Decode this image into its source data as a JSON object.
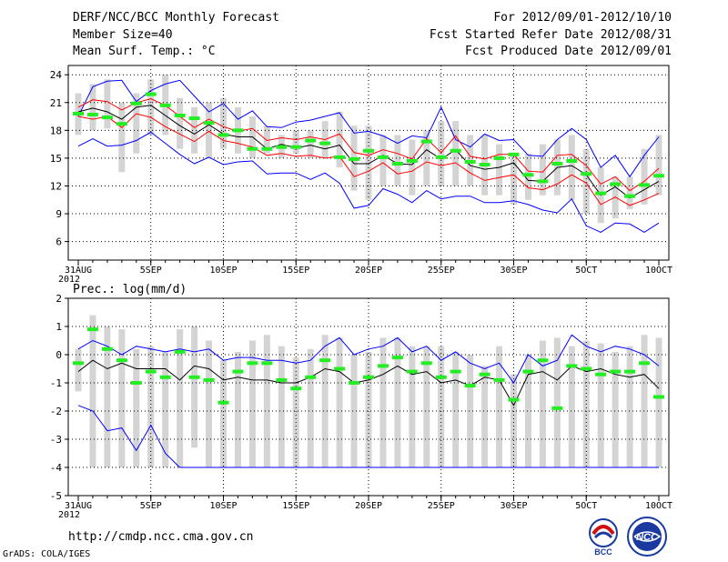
{
  "header": {
    "title": "DERF/NCC/BCC Monthly Forecast",
    "member_size": "Member Size=40",
    "variable": "Mean Surf. Temp.: °C",
    "period": "For 2012/09/01-2012/10/10",
    "started": "Fcst Started Refer Date 2012/08/31",
    "produced": "Fcst Produced Date 2012/09/01"
  },
  "footer": {
    "url": "http://cmdp.ncc.cma.gov.cn",
    "grads": "GrADS: COLA/IGES",
    "logo_bcc": "BCC",
    "logo_ncc": "NCC"
  },
  "colors": {
    "max_line": "#0000ff",
    "min_line": "#0000ff",
    "spread_line": "#ff0000",
    "mean_line": "#000000",
    "obs_marker": "#22ee22",
    "bar": "#d4d4d4",
    "grid": "#000000"
  },
  "chart_data": [
    {
      "type": "line",
      "title": "Mean Surf. Temp.: °C",
      "x_label_year": "2012",
      "x": [
        0,
        1,
        2,
        3,
        4,
        5,
        6,
        7,
        8,
        9,
        10,
        11,
        12,
        13,
        14,
        15,
        16,
        17,
        18,
        19,
        20,
        21,
        22,
        23,
        24,
        25,
        26,
        27,
        28,
        29,
        30,
        31,
        32,
        33,
        34,
        35,
        36,
        37,
        38,
        39,
        40
      ],
      "xticks": [
        {
          "x": 0,
          "label": "31AUG"
        },
        {
          "x": 5,
          "label": "5SEP"
        },
        {
          "x": 10,
          "label": "10SEP"
        },
        {
          "x": 15,
          "label": "15SEP"
        },
        {
          "x": 20,
          "label": "20SEP"
        },
        {
          "x": 25,
          "label": "25SEP"
        },
        {
          "x": 30,
          "label": "30SEP"
        },
        {
          "x": 35,
          "label": "5OCT"
        },
        {
          "x": 40,
          "label": "10OCT"
        }
      ],
      "ylim": [
        4,
        25
      ],
      "yticks": [
        6,
        9,
        12,
        15,
        18,
        21,
        24
      ],
      "bars_low": [
        17.5,
        18,
        18.2,
        13.5,
        15.5,
        17.5,
        17.5,
        16,
        15.5,
        15,
        16,
        15.5,
        15,
        15.5,
        15,
        15.5,
        15,
        15,
        14,
        11.5,
        10.5,
        12,
        12,
        11,
        12,
        12,
        12,
        12,
        11,
        11,
        10,
        10.5,
        11,
        11,
        10.5,
        9,
        8,
        8.5,
        9.5,
        10,
        11
      ],
      "bars_high": [
        22,
        23,
        23.5,
        21,
        22,
        23.5,
        24,
        21.5,
        20.5,
        21,
        21.5,
        20.5,
        19.5,
        18.5,
        17.5,
        18,
        18,
        19,
        20,
        18.5,
        18.5,
        17.5,
        17.5,
        17,
        18,
        19,
        19,
        17.5,
        17.5,
        16.5,
        15.5,
        15.5,
        16.5,
        17,
        17.5,
        16,
        14,
        13,
        13,
        16,
        17.5
      ],
      "series": [
        {
          "name": "max",
          "values": [
            16.3,
            17.1,
            16.3,
            16.4,
            16.9,
            17.8,
            16.6,
            15.4,
            14.4,
            15.1,
            14.3,
            14.6,
            14.7,
            13.3,
            13.4,
            13.4,
            12.7,
            13.4,
            12.3,
            9.6,
            9.9,
            11.7,
            11.1,
            10.2,
            11.5,
            10.6,
            10.9,
            10.9,
            10.2,
            10.2,
            10.4,
            10,
            9.4,
            9.1,
            10.6,
            7.7,
            7.0,
            8.0,
            7.9,
            7.0,
            8.0
          ]
        },
        {
          "name": "min",
          "values": [
            19.5,
            22.7,
            23.3,
            23.4,
            21.1,
            22.3,
            23.0,
            23.4,
            21.7,
            20.0,
            20.9,
            19.2,
            20.1,
            18.4,
            18.3,
            18.9,
            19.1,
            19.5,
            19.9,
            17.7,
            17.9,
            17.4,
            16.6,
            17.4,
            17.2,
            20.5,
            17.0,
            16.2,
            17.6,
            16.9,
            17.0,
            15.3,
            15.2,
            17.0,
            18.2,
            17.0,
            14.0,
            15.3,
            13.0,
            15.3,
            17.3
          ]
        },
        {
          "name": "spread_upper",
          "values": [
            20.5,
            21.3,
            21.1,
            20.2,
            21.0,
            21.4,
            20.7,
            19.5,
            18.3,
            19.2,
            18.4,
            17.9,
            18.2,
            16.9,
            17.2,
            17.0,
            17.3,
            17.0,
            17.6,
            15.6,
            15.3,
            15.9,
            15.5,
            14.9,
            17.1,
            15.6,
            17.4,
            15.2,
            14.9,
            15.4,
            15.4,
            13.6,
            13.5,
            15.3,
            15.4,
            14.2,
            12.2,
            13.0,
            11.5,
            12.5,
            13.9
          ]
        },
        {
          "name": "spread_lower",
          "values": [
            19.5,
            19.2,
            19.5,
            18.3,
            19.8,
            19.4,
            18.4,
            17.6,
            16.8,
            17.9,
            16.9,
            16.6,
            16.2,
            15.3,
            15.5,
            15.2,
            15.3,
            15.0,
            15.2,
            13.0,
            13.6,
            14.5,
            13.3,
            13.6,
            14.6,
            14.2,
            14.5,
            13.4,
            12.6,
            12.9,
            13.2,
            11.8,
            11.6,
            12.2,
            13.2,
            12.3,
            10.0,
            10.8,
            9.9,
            10.5,
            11.2
          ]
        },
        {
          "name": "ensemble_mean",
          "values": [
            20.0,
            20.4,
            20.0,
            19.2,
            20.5,
            20.7,
            19.6,
            18.5,
            17.6,
            18.6,
            17.6,
            17.3,
            17.3,
            16.0,
            16.5,
            16.1,
            16.4,
            16.0,
            16.4,
            14.4,
            14.4,
            15.3,
            14.4,
            14.3,
            15.9,
            14.9,
            15.9,
            14.2,
            13.8,
            14.0,
            14.5,
            12.6,
            12.5,
            14.0,
            14.2,
            13.2,
            11.0,
            11.9,
            10.7,
            11.6,
            12.5
          ]
        },
        {
          "name": "observed",
          "values": [
            19.8,
            19.7,
            19.4,
            18.7,
            20.9,
            21.9,
            20.7,
            19.6,
            19.3,
            18.8,
            17.5,
            18.0,
            16.0,
            16.0,
            16.2,
            16.2,
            16.9,
            16.6,
            15.1,
            14.9,
            15.8,
            15.1,
            14.4,
            14.7,
            16.8,
            15.1,
            15.8,
            14.6,
            14.3,
            15.0,
            15.4,
            13.2,
            12.5,
            14.4,
            14.7,
            13.3,
            11.2,
            12.2,
            10.9,
            12.1,
            13.1
          ]
        }
      ]
    },
    {
      "type": "line",
      "title": "Prec.: log(mm/d)",
      "x_label_year": "2012",
      "x": [
        0,
        1,
        2,
        3,
        4,
        5,
        6,
        7,
        8,
        9,
        10,
        11,
        12,
        13,
        14,
        15,
        16,
        17,
        18,
        19,
        20,
        21,
        22,
        23,
        24,
        25,
        26,
        27,
        28,
        29,
        30,
        31,
        32,
        33,
        34,
        35,
        36,
        37,
        38,
        39,
        40
      ],
      "xticks": [
        {
          "x": 0,
          "label": "31AUG"
        },
        {
          "x": 5,
          "label": "5SEP"
        },
        {
          "x": 10,
          "label": "10SEP"
        },
        {
          "x": 15,
          "label": "15SEP"
        },
        {
          "x": 20,
          "label": "20SEP"
        },
        {
          "x": 25,
          "label": "25SEP"
        },
        {
          "x": 30,
          "label": "30SEP"
        },
        {
          "x": 35,
          "label": "5OCT"
        },
        {
          "x": 40,
          "label": "10OCT"
        }
      ],
      "ylim": [
        -5,
        2
      ],
      "yticks": [
        -5,
        -4,
        -3,
        -2,
        -1,
        0,
        1,
        2
      ],
      "bars_low": [
        -1.3,
        -4,
        -4,
        -4,
        -4,
        -4,
        -4,
        -4,
        -3.3,
        -4,
        -4,
        -4,
        -4,
        -4,
        -4,
        -4,
        -4,
        -4,
        -4,
        -4,
        -4,
        -4,
        -4,
        -4,
        -4,
        -4,
        -4,
        -4,
        -4,
        -4,
        -4,
        -4,
        -4,
        -4,
        -4,
        -4,
        -4,
        -4,
        -4,
        -4,
        -4
      ],
      "bars_high": [
        0.2,
        1.4,
        1.0,
        0.9,
        0.2,
        0.3,
        0.1,
        0.9,
        1.0,
        0.5,
        -0.2,
        0.1,
        0.5,
        0.7,
        0.3,
        -0.1,
        0.2,
        0.7,
        0.6,
        0.0,
        0.1,
        0.6,
        0.6,
        0.3,
        0.3,
        0.3,
        0.1,
        0.0,
        -0.4,
        0.3,
        -0.7,
        0.0,
        0.5,
        0.6,
        0.3,
        0.5,
        0.4,
        0.1,
        0.3,
        0.7,
        0.6
      ],
      "series": [
        {
          "name": "max",
          "values": [
            0.2,
            0.5,
            0.3,
            0.0,
            0.3,
            0.2,
            0.1,
            0.2,
            0.1,
            0.2,
            -0.2,
            -0.1,
            -0.1,
            -0.2,
            -0.2,
            -0.3,
            -0.2,
            0.3,
            0.6,
            0.0,
            0.2,
            0.3,
            0.6,
            0.1,
            0.3,
            -0.2,
            0.1,
            -0.3,
            -0.5,
            -0.3,
            -1.0,
            0.0,
            -0.4,
            -0.2,
            0.7,
            0.3,
            0.1,
            0.3,
            0.2,
            0.0,
            -0.4
          ]
        },
        {
          "name": "mean",
          "values": [
            -0.6,
            -0.2,
            -0.5,
            -0.3,
            -0.5,
            -0.5,
            -0.5,
            -0.9,
            -0.4,
            -0.5,
            -0.9,
            -0.8,
            -0.9,
            -0.9,
            -1.0,
            -1.0,
            -0.8,
            -0.5,
            -0.6,
            -1.0,
            -0.9,
            -0.7,
            -0.4,
            -0.7,
            -0.6,
            -1.0,
            -0.9,
            -1.1,
            -0.8,
            -0.9,
            -1.8,
            -0.7,
            -0.6,
            -0.9,
            -0.4,
            -0.6,
            -0.5,
            -0.7,
            -0.8,
            -0.7,
            -1.2
          ]
        },
        {
          "name": "min",
          "values": [
            -1.8,
            -2.0,
            -2.7,
            -2.6,
            -3.4,
            -2.5,
            -3.5,
            -4.0,
            -4.0,
            -4.0,
            -4.0,
            -4.0,
            -4.0,
            -4.0,
            -4.0,
            -4.0,
            -4.0,
            -4.0,
            -4.0,
            -4.0,
            -4.0,
            -4.0,
            -4.0,
            -4.0,
            -4.0,
            -4.0,
            -4.0,
            -4.0,
            -4.0,
            -4.0,
            -4.0,
            -4.0,
            -4.0,
            -4.0,
            -4.0,
            -4.0,
            -4.0,
            -4.0,
            -4.0,
            -4.0,
            -4.0
          ]
        },
        {
          "name": "observed",
          "values": [
            -0.3,
            0.9,
            0.2,
            -0.2,
            -1.0,
            -0.6,
            -0.8,
            0.1,
            -0.8,
            -0.9,
            -1.7,
            -0.6,
            -0.3,
            -0.3,
            -0.9,
            -1.2,
            -0.8,
            -0.2,
            -0.5,
            -1.0,
            -0.8,
            -0.4,
            -0.1,
            -0.6,
            -0.3,
            -0.8,
            -0.6,
            -1.1,
            -0.7,
            -0.9,
            -1.6,
            -0.6,
            -0.2,
            -1.9,
            -0.4,
            -0.5,
            -0.7,
            -0.6,
            -0.6,
            -0.3,
            -1.5
          ]
        }
      ]
    }
  ]
}
